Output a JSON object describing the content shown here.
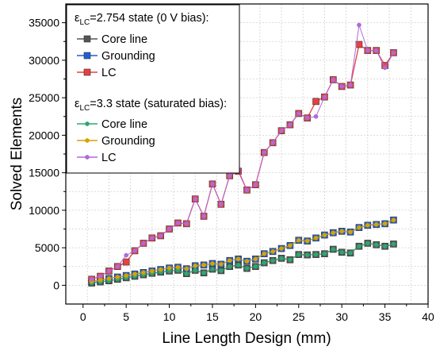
{
  "chart_data": {
    "type": "line",
    "xlabel": "Line Length Design (mm)",
    "ylabel": "Solved Elements",
    "xlim": [
      -2,
      40
    ],
    "ylim": [
      -2500,
      37500
    ],
    "xticks": [
      0,
      5,
      10,
      15,
      20,
      25,
      30,
      35,
      40
    ],
    "yticks": [
      0,
      5000,
      10000,
      15000,
      20000,
      25000,
      30000,
      35000
    ],
    "xtick_labels": [
      "0",
      "5",
      "10",
      "15",
      "20",
      "25",
      "30",
      "35",
      "40"
    ],
    "ytick_labels": [
      "0",
      "5000",
      "10000",
      "15000",
      "20000",
      "25000",
      "30000",
      "35000"
    ],
    "grid": true,
    "legend_position": "top-left",
    "x": [
      1,
      2,
      3,
      4,
      5,
      6,
      7,
      8,
      9,
      10,
      11,
      12,
      13,
      14,
      15,
      16,
      17,
      18,
      19,
      20,
      21,
      22,
      23,
      24,
      25,
      26,
      27,
      28,
      29,
      30,
      31,
      32,
      33,
      34,
      35,
      36
    ],
    "groups": [
      {
        "title_prefix": "ε",
        "title_sub": "LC",
        "title_rest": "=2.754 state (0 V bias):",
        "style": "square",
        "series": [
          {
            "name": "Core line",
            "color": "#555555",
            "values": [
              300,
              450,
              600,
              800,
              1000,
              1200,
              1400,
              1600,
              1750,
              1900,
              2000,
              1550,
              2000,
              1650,
              2150,
              1950,
              2500,
              2700,
              2250,
              2500,
              3000,
              3300,
              3600,
              3400,
              4100,
              4050,
              4100,
              4200,
              4800,
              4400,
              4300,
              5200,
              5600,
              5400,
              5200,
              5500
            ]
          },
          {
            "name": "Grounding",
            "color": "#1f5fd6",
            "values": [
              500,
              700,
              900,
              1100,
              1300,
              1500,
              1700,
              1900,
              2100,
              2300,
              2400,
              2200,
              2600,
              2700,
              2900,
              2800,
              3300,
              3500,
              3200,
              3500,
              4200,
              4500,
              4900,
              5300,
              6000,
              5900,
              6300,
              6700,
              7000,
              7200,
              7100,
              7700,
              8000,
              8100,
              8200,
              8700
            ]
          },
          {
            "name": "LC",
            "color": "#e84040",
            "values": [
              800,
              1200,
              1900,
              2500,
              3100,
              4600,
              5600,
              6300,
              6600,
              7500,
              8300,
              8200,
              11500,
              9200,
              13500,
              10800,
              14600,
              15200,
              12700,
              13400,
              17700,
              19000,
              20600,
              21400,
              22900,
              22300,
              24500,
              25100,
              27400,
              26500,
              26700,
              32100,
              31300,
              31300,
              29300,
              31000
            ]
          }
        ]
      },
      {
        "title_prefix": "ε",
        "title_sub": "LC",
        "title_rest": "=3.3 state (saturated bias):",
        "style": "dot",
        "series": [
          {
            "name": "Core line",
            "color": "#2aa870",
            "values": [
              300,
              450,
              600,
              800,
              1000,
              1200,
              1400,
              1600,
              1750,
              1900,
              2000,
              1550,
              2000,
              1650,
              2150,
              1950,
              2500,
              2700,
              2250,
              2500,
              3000,
              3300,
              3600,
              3400,
              4100,
              4050,
              4100,
              4200,
              4800,
              4400,
              4300,
              5200,
              5600,
              5400,
              5200,
              5500
            ]
          },
          {
            "name": "Grounding",
            "color": "#d6a300",
            "values": [
              500,
              700,
              900,
              1100,
              1300,
              1500,
              1700,
              1900,
              2100,
              2300,
              2400,
              2200,
              2600,
              2700,
              2900,
              2800,
              3300,
              3500,
              3200,
              3500,
              4200,
              4500,
              4900,
              5300,
              6000,
              5900,
              6300,
              6700,
              7000,
              7200,
              7100,
              7700,
              8000,
              8100,
              8200,
              8700
            ]
          },
          {
            "name": "LC",
            "color": "#b06ad6",
            "values": [
              800,
              1200,
              1900,
              2500,
              4000,
              4600,
              5600,
              6300,
              6600,
              7500,
              8300,
              8200,
              11500,
              9200,
              13500,
              10800,
              14600,
              15400,
              12700,
              13400,
              17700,
              19000,
              20600,
              21400,
              22900,
              22300,
              22500,
              25100,
              27400,
              26500,
              26700,
              34700,
              31300,
              31300,
              29000,
              31000
            ]
          }
        ]
      }
    ]
  }
}
